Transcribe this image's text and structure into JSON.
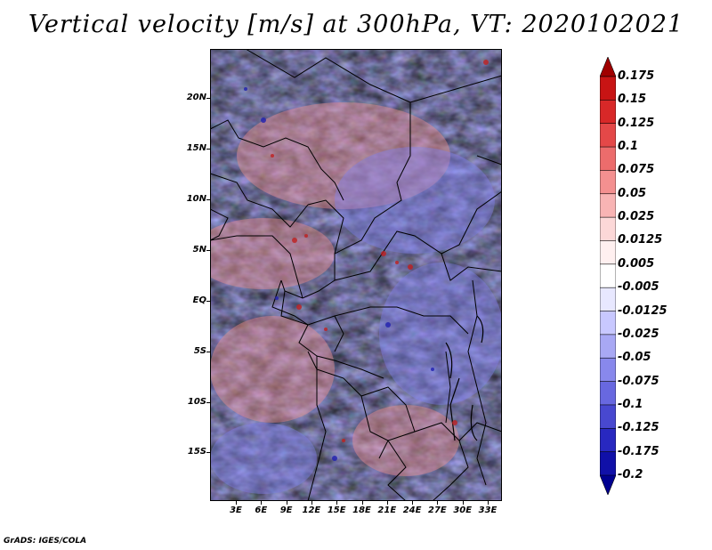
{
  "title": "Vertical velocity [m/s] at 300hPa, VT: 2020102021",
  "credit": "GrADS: IGES/COLA",
  "map": {
    "lat_labels": [
      "20N",
      "15N",
      "10N",
      "5N",
      "EQ",
      "5S",
      "10S",
      "15S"
    ],
    "lon_labels": [
      "3E",
      "6E",
      "9E",
      "12E",
      "15E",
      "18E",
      "21E",
      "24E",
      "27E",
      "30E",
      "33E"
    ]
  },
  "colorbar": {
    "labels": [
      "0.175",
      "0.15",
      "0.125",
      "0.1",
      "0.075",
      "0.05",
      "0.025",
      "0.0125",
      "0.005",
      "-0.005",
      "-0.0125",
      "-0.025",
      "-0.05",
      "-0.075",
      "-0.1",
      "-0.125",
      "-0.175",
      "-0.2"
    ],
    "colors": [
      "#a00000",
      "#c81414",
      "#d82828",
      "#e44848",
      "#ec6c6c",
      "#f49090",
      "#f8b4b4",
      "#fcd8d8",
      "#fff0f0",
      "#ffffff",
      "#e8e8ff",
      "#c8c8ff",
      "#a8a8f4",
      "#8888ec",
      "#6868e0",
      "#4848d0",
      "#2828c0",
      "#1010a8",
      "#000090"
    ]
  }
}
